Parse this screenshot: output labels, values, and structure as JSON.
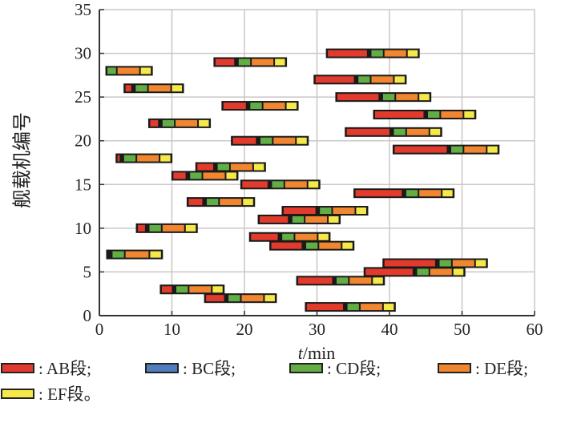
{
  "chart_data": {
    "type": "gantt",
    "title": "",
    "xlabel_italic": "t",
    "xlabel_unit": "/min",
    "ylabel": "舰载机编号",
    "xlim": [
      0,
      60
    ],
    "ylim": [
      0,
      35
    ],
    "xticks": [
      0,
      10,
      20,
      30,
      40,
      50,
      60
    ],
    "yticks": [
      0,
      5,
      10,
      15,
      20,
      25,
      30,
      35
    ],
    "grid": true,
    "legend_placement": "bottom",
    "segments": [
      {
        "key": "AB",
        "label": ": AB段;",
        "color": "#e23b2e"
      },
      {
        "key": "BC",
        "label": ": BC段;",
        "color": "#4f7dbd"
      },
      {
        "key": "CD",
        "label": ": CD段;",
        "color": "#62ad45"
      },
      {
        "key": "DE",
        "label": ": DE段;",
        "color": "#f0862f"
      },
      {
        "key": "EF",
        "label": ": EF段。",
        "color": "#f5e94a"
      }
    ],
    "aircraft": [
      {
        "id": 1,
        "times": [
          28.5,
          33.7,
          34.1,
          35.9,
          39.1,
          40.7
        ]
      },
      {
        "id": 2,
        "times": [
          14.6,
          17.3,
          17.7,
          19.5,
          22.7,
          24.3
        ]
      },
      {
        "id": 3,
        "times": [
          8.5,
          10.1,
          10.5,
          12.3,
          15.5,
          17.1
        ]
      },
      {
        "id": 4,
        "times": [
          27.3,
          32.2,
          32.6,
          34.4,
          37.6,
          39.2
        ]
      },
      {
        "id": 5,
        "times": [
          36.6,
          43.3,
          43.7,
          45.5,
          48.7,
          50.3
        ]
      },
      {
        "id": 6,
        "times": [
          39.2,
          46.4,
          46.8,
          48.6,
          51.8,
          53.4
        ]
      },
      {
        "id": 7,
        "times": [
          1.1,
          1.2,
          1.7,
          3.5,
          6.9,
          8.6
        ]
      },
      {
        "id": 8,
        "times": [
          23.6,
          28.0,
          28.4,
          30.2,
          33.4,
          35.0
        ]
      },
      {
        "id": 9,
        "times": [
          20.8,
          24.7,
          25.1,
          26.9,
          30.1,
          31.7
        ]
      },
      {
        "id": 10,
        "times": [
          5.2,
          6.4,
          6.8,
          8.6,
          11.8,
          13.4
        ]
      },
      {
        "id": 11,
        "times": [
          22.0,
          26.1,
          26.5,
          28.3,
          31.5,
          33.1
        ]
      },
      {
        "id": 12,
        "times": [
          25.3,
          29.9,
          30.3,
          32.1,
          35.3,
          36.9
        ]
      },
      {
        "id": 13,
        "times": [
          12.2,
          14.3,
          14.7,
          16.5,
          19.7,
          21.3
        ]
      },
      {
        "id": 14,
        "times": [
          35.2,
          41.8,
          42.2,
          44.0,
          47.2,
          48.8
        ]
      },
      {
        "id": 15,
        "times": [
          19.6,
          23.3,
          23.7,
          25.5,
          28.7,
          30.3
        ]
      },
      {
        "id": 16,
        "times": [
          10.1,
          12.0,
          12.4,
          14.2,
          17.4,
          19.0
        ]
      },
      {
        "id": 17,
        "times": [
          13.4,
          15.8,
          16.2,
          18.0,
          21.2,
          22.8
        ]
      },
      {
        "id": 18,
        "times": [
          2.4,
          2.9,
          3.3,
          5.1,
          8.3,
          9.9
        ]
      },
      {
        "id": 19,
        "times": [
          40.6,
          48.0,
          48.4,
          50.2,
          53.4,
          55.0
        ]
      },
      {
        "id": 20,
        "times": [
          18.3,
          21.7,
          22.1,
          23.9,
          27.1,
          28.7
        ]
      },
      {
        "id": 21,
        "times": [
          34.0,
          40.1,
          40.5,
          42.3,
          45.5,
          47.1
        ]
      },
      {
        "id": 22,
        "times": [
          6.9,
          8.2,
          8.6,
          10.4,
          13.6,
          15.2
        ]
      },
      {
        "id": 23,
        "times": [
          37.9,
          44.8,
          45.2,
          47.0,
          50.2,
          51.8
        ]
      },
      {
        "id": 24,
        "times": [
          17.0,
          20.3,
          20.7,
          22.5,
          25.7,
          27.3
        ]
      },
      {
        "id": 25,
        "times": [
          32.7,
          38.6,
          39.0,
          40.8,
          44.0,
          45.6
        ]
      },
      {
        "id": 26,
        "times": [
          3.5,
          4.5,
          4.9,
          6.7,
          9.9,
          11.5
        ]
      },
      {
        "id": 27,
        "times": [
          29.7,
          35.2,
          35.6,
          37.4,
          40.6,
          42.2
        ]
      },
      {
        "id": 28,
        "times": [
          1.0,
          1.0,
          1.0,
          2.4,
          5.6,
          7.2
        ]
      },
      {
        "id": 29,
        "times": [
          15.9,
          18.7,
          19.1,
          20.9,
          24.1,
          25.7
        ]
      },
      {
        "id": 30,
        "times": [
          31.4,
          37.0,
          37.4,
          39.2,
          42.4,
          44.0
        ]
      }
    ]
  }
}
